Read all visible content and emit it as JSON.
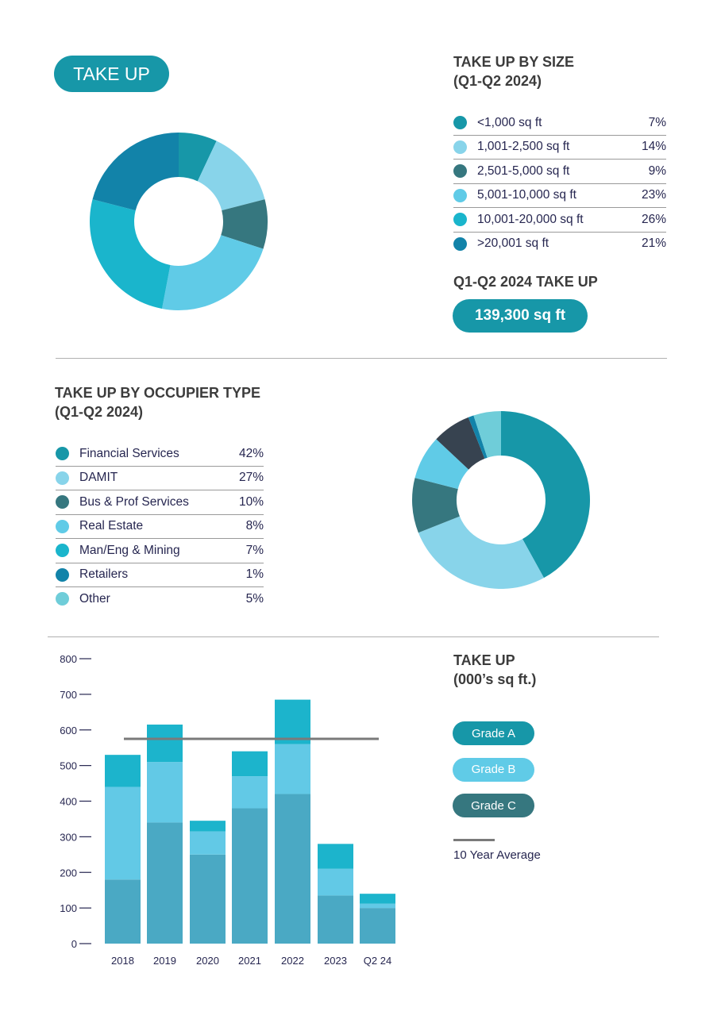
{
  "badge": "TAKE UP",
  "size_section": {
    "title_line1": "TAKE UP BY SIZE",
    "title_line2": "(Q1-Q2 2024)",
    "total_title": "Q1-Q2 2024 TAKE UP",
    "total_value": "139,300 sq ft"
  },
  "occupier_section": {
    "title_line1": "TAKE UP BY OCCUPIER TYPE",
    "title_line2": "(Q1-Q2 2024)"
  },
  "bar_section": {
    "title_line1": "TAKE UP",
    "title_line2": "(000’s sq ft.)",
    "average_label": "10 Year Average"
  },
  "colors": {
    "accent": "#1797a8",
    "heading": "#3c3c3c",
    "text": "#262650",
    "average_line": "#7a7a7a"
  },
  "chart_data": [
    {
      "type": "pie",
      "subtype": "donut",
      "slices": [
        {
          "label": "<1,000 sq ft",
          "value": 7,
          "display": "7%",
          "color": "#1797a8"
        },
        {
          "label": "1,001-2,500 sq ft",
          "value": 14,
          "display": "14%",
          "color": "#88d4ea"
        },
        {
          "label": "2,501-5,000 sq ft",
          "value": 9,
          "display": "9%",
          "color": "#36777f"
        },
        {
          "label": "5,001-10,000 sq ft",
          "value": 23,
          "display": "23%",
          "color": "#60cbe7"
        },
        {
          "label": "10,001-20,000 sq ft",
          "value": 26,
          "display": "26%",
          "color": "#1ab5cc"
        },
        {
          "label": ">20,001 sq ft",
          "value": 21,
          "display": "21%",
          "color": "#1283a9"
        }
      ]
    },
    {
      "type": "pie",
      "subtype": "donut",
      "slices": [
        {
          "label": "Financial Services",
          "value": 42,
          "display": "42%",
          "color": "#1797a8"
        },
        {
          "label": "DAMIT",
          "value": 27,
          "display": "27%",
          "color": "#88d4ea"
        },
        {
          "label": "Bus & Prof Services",
          "value": 10,
          "display": "10%",
          "color": "#36777f"
        },
        {
          "label": "Real Estate",
          "value": 8,
          "display": "8%",
          "color": "#60cbe7"
        },
        {
          "label": "Man/Eng & Mining",
          "value": 7,
          "display": "7%",
          "color": "#1ab5cc",
          "chart_color": "#374350"
        },
        {
          "label": "Retailers",
          "value": 1,
          "display": "1%",
          "color": "#1283a9"
        },
        {
          "label": "Other",
          "value": 5,
          "display": "5%",
          "color": "#6fcdd9"
        }
      ]
    },
    {
      "type": "bar",
      "stacked": true,
      "categories": [
        "2018",
        "2019",
        "2020",
        "2021",
        "2022",
        "2023",
        "Q2 24"
      ],
      "ylim": [
        0,
        800
      ],
      "yticks": [
        0,
        100,
        200,
        300,
        400,
        500,
        600,
        700,
        800
      ],
      "series": [
        {
          "name": "Grade A",
          "values": [
            180,
            340,
            250,
            380,
            420,
            135,
            100
          ],
          "legend_color": "#1797a8",
          "bar_color": "#4aa9c4"
        },
        {
          "name": "Grade B",
          "values": [
            260,
            170,
            65,
            90,
            140,
            75,
            12
          ],
          "legend_color": "#60cbe7",
          "bar_color": "#62c9e6"
        },
        {
          "name": "Grade C",
          "values": [
            90,
            105,
            30,
            70,
            125,
            70,
            28
          ],
          "legend_color": "#36777f",
          "bar_color": "#1cb4cc"
        }
      ],
      "average": {
        "name": "10 Year Average",
        "value": 575
      },
      "grid": false,
      "legend": "right"
    }
  ]
}
